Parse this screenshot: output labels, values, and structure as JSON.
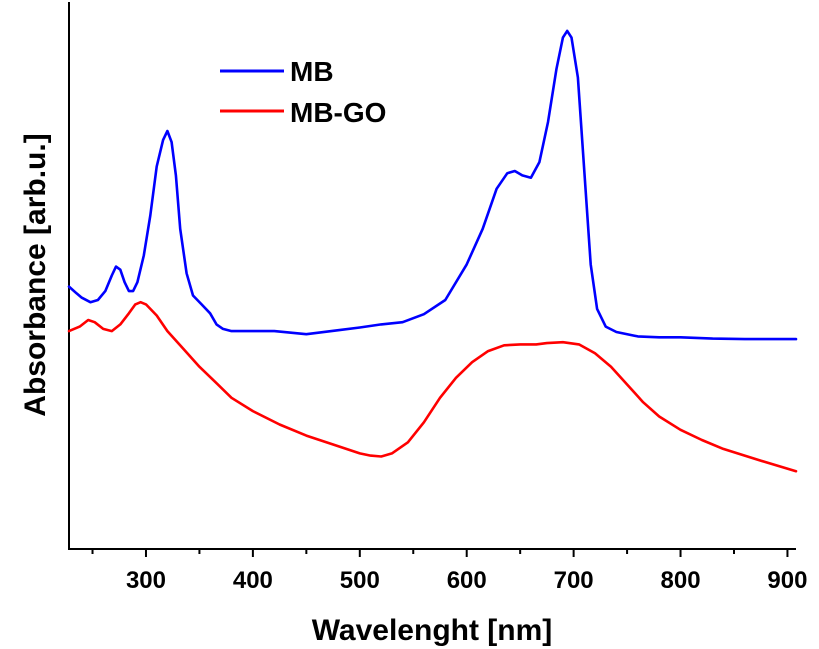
{
  "chart_data": {
    "type": "line",
    "xlabel": "Wavelenght [nm]",
    "ylabel": "Absorbance [arb.u.]",
    "xlim": [
      228,
      908
    ],
    "ylim": [
      0,
      1.23
    ],
    "x_ticks": [
      300,
      400,
      500,
      600,
      700,
      800,
      900
    ],
    "y_ticks_shown": false,
    "grid": false,
    "legend_position": "top-left",
    "series": [
      {
        "name": "MB",
        "color": "#0000ff",
        "points": [
          [
            228,
            0.59
          ],
          [
            235,
            0.575
          ],
          [
            240,
            0.565
          ],
          [
            248,
            0.555
          ],
          [
            255,
            0.56
          ],
          [
            262,
            0.58
          ],
          [
            268,
            0.615
          ],
          [
            272,
            0.635
          ],
          [
            276,
            0.628
          ],
          [
            280,
            0.6
          ],
          [
            284,
            0.58
          ],
          [
            288,
            0.58
          ],
          [
            292,
            0.6
          ],
          [
            298,
            0.66
          ],
          [
            304,
            0.75
          ],
          [
            310,
            0.86
          ],
          [
            316,
            0.92
          ],
          [
            320,
            0.94
          ],
          [
            324,
            0.915
          ],
          [
            328,
            0.84
          ],
          [
            332,
            0.72
          ],
          [
            338,
            0.62
          ],
          [
            344,
            0.57
          ],
          [
            352,
            0.55
          ],
          [
            360,
            0.53
          ],
          [
            366,
            0.505
          ],
          [
            372,
            0.495
          ],
          [
            380,
            0.49
          ],
          [
            400,
            0.49
          ],
          [
            420,
            0.49
          ],
          [
            450,
            0.483
          ],
          [
            480,
            0.492
          ],
          [
            500,
            0.498
          ],
          [
            520,
            0.505
          ],
          [
            540,
            0.51
          ],
          [
            560,
            0.528
          ],
          [
            580,
            0.56
          ],
          [
            600,
            0.64
          ],
          [
            615,
            0.72
          ],
          [
            628,
            0.81
          ],
          [
            638,
            0.845
          ],
          [
            645,
            0.85
          ],
          [
            652,
            0.84
          ],
          [
            660,
            0.835
          ],
          [
            668,
            0.87
          ],
          [
            676,
            0.96
          ],
          [
            684,
            1.08
          ],
          [
            690,
            1.15
          ],
          [
            694,
            1.165
          ],
          [
            698,
            1.15
          ],
          [
            704,
            1.06
          ],
          [
            710,
            0.85
          ],
          [
            716,
            0.64
          ],
          [
            722,
            0.54
          ],
          [
            730,
            0.5
          ],
          [
            740,
            0.488
          ],
          [
            760,
            0.478
          ],
          [
            780,
            0.476
          ],
          [
            800,
            0.476
          ],
          [
            830,
            0.473
          ],
          [
            860,
            0.472
          ],
          [
            908,
            0.472
          ]
        ]
      },
      {
        "name": "MB-GO",
        "color": "#ff0000",
        "points": [
          [
            228,
            0.49
          ],
          [
            238,
            0.5
          ],
          [
            246,
            0.515
          ],
          [
            252,
            0.51
          ],
          [
            260,
            0.495
          ],
          [
            268,
            0.49
          ],
          [
            276,
            0.505
          ],
          [
            284,
            0.53
          ],
          [
            290,
            0.55
          ],
          [
            295,
            0.555
          ],
          [
            300,
            0.55
          ],
          [
            310,
            0.525
          ],
          [
            320,
            0.49
          ],
          [
            335,
            0.45
          ],
          [
            350,
            0.41
          ],
          [
            365,
            0.375
          ],
          [
            380,
            0.34
          ],
          [
            400,
            0.31
          ],
          [
            425,
            0.28
          ],
          [
            450,
            0.255
          ],
          [
            475,
            0.235
          ],
          [
            500,
            0.215
          ],
          [
            510,
            0.21
          ],
          [
            520,
            0.208
          ],
          [
            530,
            0.215
          ],
          [
            545,
            0.24
          ],
          [
            560,
            0.285
          ],
          [
            575,
            0.34
          ],
          [
            590,
            0.385
          ],
          [
            605,
            0.42
          ],
          [
            620,
            0.445
          ],
          [
            635,
            0.458
          ],
          [
            650,
            0.46
          ],
          [
            665,
            0.46
          ],
          [
            675,
            0.463
          ],
          [
            690,
            0.465
          ],
          [
            705,
            0.46
          ],
          [
            720,
            0.44
          ],
          [
            735,
            0.41
          ],
          [
            750,
            0.37
          ],
          [
            765,
            0.33
          ],
          [
            780,
            0.298
          ],
          [
            800,
            0.268
          ],
          [
            820,
            0.245
          ],
          [
            840,
            0.225
          ],
          [
            860,
            0.21
          ],
          [
            880,
            0.195
          ],
          [
            908,
            0.175
          ]
        ]
      }
    ]
  }
}
